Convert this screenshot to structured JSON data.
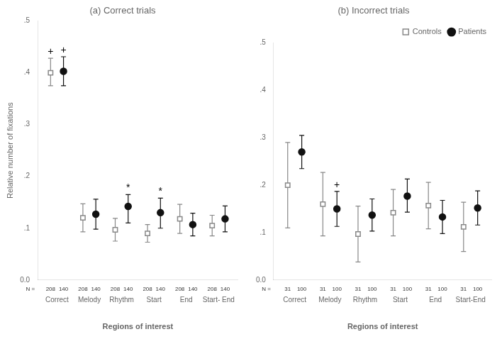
{
  "chart_data": [
    {
      "type": "errorbar",
      "title": "(a) Correct trials",
      "xlabel": "Regions of interest",
      "ylabel": "Relative number of fixations",
      "categories": [
        "Correct",
        "Melody",
        "Rhythm",
        "Start",
        "End",
        "Start- End"
      ],
      "n_label": "N =",
      "series": [
        {
          "name": "Controls",
          "color": "#888888",
          "marker": "open_square",
          "values": [
            0.4,
            0.12,
            0.097,
            0.09,
            0.118,
            0.105
          ],
          "ci_low": [
            0.375,
            0.093,
            0.075,
            0.073,
            0.09,
            0.085
          ],
          "ci_high": [
            0.428,
            0.147,
            0.119,
            0.107,
            0.146,
            0.125
          ],
          "n": [
            "208",
            "208",
            "208",
            "208",
            "208",
            "208"
          ]
        },
        {
          "name": "Patients",
          "color": "#111111",
          "marker": "circle",
          "values": [
            0.403,
            0.127,
            0.142,
            0.13,
            0.107,
            0.118
          ],
          "ci_low": [
            0.375,
            0.098,
            0.11,
            0.1,
            0.085,
            0.093
          ],
          "ci_high": [
            0.431,
            0.156,
            0.165,
            0.158,
            0.129,
            0.143
          ],
          "n": [
            "140",
            "140",
            "140",
            "140",
            "140",
            "140"
          ]
        }
      ],
      "annotations": [
        {
          "text": "+",
          "category": "Correct",
          "series": "Controls"
        },
        {
          "text": "+",
          "category": "Correct",
          "series": "Patients"
        },
        {
          "text": "*",
          "category": "Rhythm",
          "series": "Patients"
        },
        {
          "text": "*",
          "category": "Start",
          "series": "Patients"
        }
      ],
      "ylim": [
        0.0,
        0.5
      ],
      "yticks": [
        {
          "value": 0.0,
          "label": "0.0"
        },
        {
          "value": 0.1,
          "label": ".1"
        },
        {
          "value": 0.2,
          "label": ".2"
        },
        {
          "value": 0.3,
          "label": ".3"
        },
        {
          "value": 0.4,
          "label": ".4"
        },
        {
          "value": 0.5,
          "label": ".5"
        }
      ],
      "grid": false
    },
    {
      "type": "errorbar",
      "title": "(b) Incorrect trials",
      "xlabel": "Regions of interest",
      "categories": [
        "Correct",
        "Melody",
        "Rhythm",
        "Start",
        "End",
        "Start-End"
      ],
      "n_label": "N =",
      "series": [
        {
          "name": "Controls",
          "color": "#888888",
          "marker": "open_square",
          "values": [
            0.2,
            0.16,
            0.097,
            0.142,
            0.157,
            0.112
          ],
          "ci_low": [
            0.11,
            0.093,
            0.038,
            0.093,
            0.108,
            0.06
          ],
          "ci_high": [
            0.29,
            0.227,
            0.156,
            0.191,
            0.206,
            0.164
          ],
          "n": [
            "31",
            "31",
            "31",
            "31",
            "31",
            "31"
          ]
        },
        {
          "name": "Patients",
          "color": "#111111",
          "marker": "circle",
          "values": [
            0.27,
            0.15,
            0.137,
            0.177,
            0.133,
            0.152
          ],
          "ci_low": [
            0.235,
            0.113,
            0.103,
            0.143,
            0.098,
            0.116
          ],
          "ci_high": [
            0.305,
            0.187,
            0.171,
            0.213,
            0.168,
            0.188
          ],
          "n": [
            "100",
            "100",
            "100",
            "100",
            "100",
            "100"
          ]
        }
      ],
      "annotations": [
        {
          "text": "+",
          "category": "Melody",
          "series": "Patients"
        }
      ],
      "ylim": [
        0.0,
        0.5
      ],
      "yticks": [
        {
          "value": 0.0,
          "label": "0.0"
        },
        {
          "value": 0.1,
          "label": ".1"
        },
        {
          "value": 0.2,
          "label": ".2"
        },
        {
          "value": 0.3,
          "label": ".3"
        },
        {
          "value": 0.4,
          "label": ".4"
        },
        {
          "value": 0.5,
          "label": ".5"
        }
      ],
      "legend": "upper right",
      "grid": false
    }
  ]
}
